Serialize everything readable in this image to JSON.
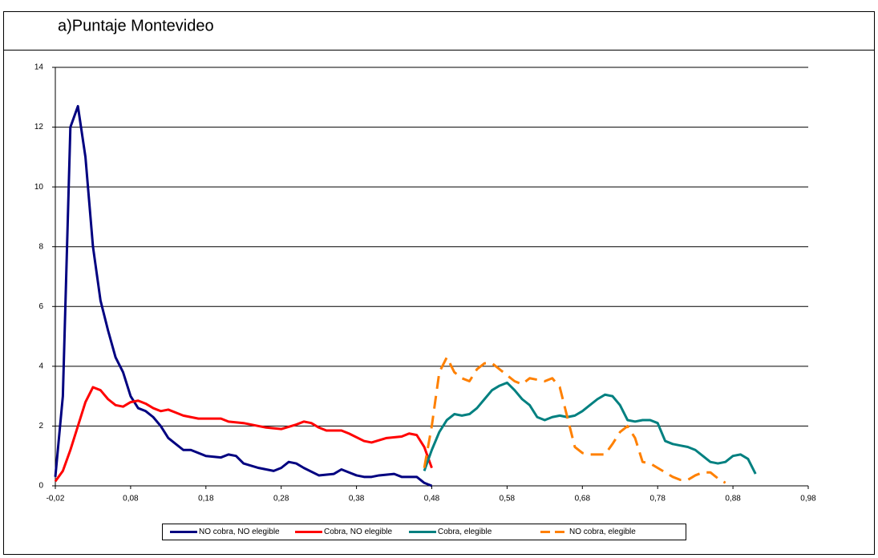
{
  "chart_data": {
    "type": "line",
    "title": "a)Puntaje Montevideo",
    "xlim": [
      -0.02,
      0.98
    ],
    "xticks": [
      {
        "value": -0.02,
        "label": "-0,02"
      },
      {
        "value": 0.08,
        "label": "0,08"
      },
      {
        "value": 0.18,
        "label": "0,18"
      },
      {
        "value": 0.28,
        "label": "0,28"
      },
      {
        "value": 0.38,
        "label": "0,38"
      },
      {
        "value": 0.48,
        "label": "0,48"
      },
      {
        "value": 0.58,
        "label": "0,58"
      },
      {
        "value": 0.68,
        "label": "0,68"
      },
      {
        "value": 0.78,
        "label": "0,78"
      },
      {
        "value": 0.88,
        "label": "0,88"
      },
      {
        "value": 0.98,
        "label": "0,98"
      }
    ],
    "ylim": [
      0,
      14
    ],
    "yticks": [
      0,
      2,
      4,
      6,
      8,
      10,
      12,
      14
    ],
    "grid": true,
    "legend": "bottom",
    "series": [
      {
        "name": "NO cobra, NO elegible",
        "color": "#000080",
        "dashed": false,
        "x": [
          -0.02,
          -0.01,
          0.0,
          0.01,
          0.02,
          0.03,
          0.04,
          0.05,
          0.06,
          0.07,
          0.08,
          0.09,
          0.1,
          0.11,
          0.12,
          0.13,
          0.14,
          0.15,
          0.16,
          0.18,
          0.2,
          0.21,
          0.22,
          0.23,
          0.25,
          0.27,
          0.28,
          0.29,
          0.3,
          0.31,
          0.33,
          0.35,
          0.36,
          0.37,
          0.38,
          0.39,
          0.4,
          0.41,
          0.43,
          0.44,
          0.46,
          0.47,
          0.48
        ],
        "values": [
          0.3,
          3.0,
          12.0,
          12.7,
          11.0,
          8.0,
          6.2,
          5.2,
          4.3,
          3.8,
          3.0,
          2.6,
          2.5,
          2.3,
          2.0,
          1.6,
          1.4,
          1.2,
          1.2,
          1.0,
          0.95,
          1.05,
          1.0,
          0.75,
          0.6,
          0.5,
          0.6,
          0.8,
          0.75,
          0.6,
          0.35,
          0.4,
          0.55,
          0.45,
          0.35,
          0.3,
          0.3,
          0.35,
          0.4,
          0.3,
          0.3,
          0.1,
          0.0
        ]
      },
      {
        "name": "Cobra, NO elegible",
        "color": "#ff0000",
        "dashed": false,
        "x": [
          -0.02,
          -0.01,
          0.0,
          0.01,
          0.02,
          0.03,
          0.04,
          0.05,
          0.06,
          0.07,
          0.08,
          0.09,
          0.1,
          0.11,
          0.12,
          0.13,
          0.14,
          0.15,
          0.17,
          0.19,
          0.2,
          0.21,
          0.23,
          0.25,
          0.26,
          0.28,
          0.3,
          0.31,
          0.32,
          0.33,
          0.34,
          0.36,
          0.37,
          0.39,
          0.4,
          0.42,
          0.44,
          0.45,
          0.46,
          0.47,
          0.48
        ],
        "values": [
          0.15,
          0.5,
          1.2,
          2.0,
          2.8,
          3.3,
          3.2,
          2.9,
          2.7,
          2.65,
          2.8,
          2.85,
          2.75,
          2.6,
          2.5,
          2.55,
          2.45,
          2.35,
          2.25,
          2.25,
          2.25,
          2.15,
          2.1,
          2.0,
          1.95,
          1.9,
          2.05,
          2.15,
          2.1,
          1.95,
          1.85,
          1.85,
          1.75,
          1.5,
          1.45,
          1.6,
          1.65,
          1.75,
          1.7,
          1.3,
          0.6
        ]
      },
      {
        "name": "Cobra, elegible",
        "color": "#008080",
        "dashed": false,
        "x": [
          0.47,
          0.48,
          0.49,
          0.5,
          0.51,
          0.52,
          0.53,
          0.54,
          0.55,
          0.56,
          0.57,
          0.58,
          0.59,
          0.6,
          0.61,
          0.62,
          0.63,
          0.64,
          0.65,
          0.66,
          0.67,
          0.68,
          0.69,
          0.7,
          0.71,
          0.72,
          0.73,
          0.74,
          0.75,
          0.76,
          0.77,
          0.78,
          0.79,
          0.8,
          0.81,
          0.82,
          0.83,
          0.84,
          0.85,
          0.86,
          0.87,
          0.88,
          0.89,
          0.9,
          0.91
        ],
        "values": [
          0.5,
          1.2,
          1.8,
          2.2,
          2.4,
          2.35,
          2.4,
          2.6,
          2.9,
          3.2,
          3.35,
          3.45,
          3.2,
          2.9,
          2.7,
          2.3,
          2.2,
          2.3,
          2.35,
          2.3,
          2.35,
          2.5,
          2.7,
          2.9,
          3.05,
          3.0,
          2.7,
          2.2,
          2.15,
          2.2,
          2.2,
          2.1,
          1.5,
          1.4,
          1.35,
          1.3,
          1.2,
          1.0,
          0.8,
          0.75,
          0.8,
          1.0,
          1.05,
          0.9,
          0.4
        ]
      },
      {
        "name": "NO cobra, elegible",
        "color": "#ff8000",
        "dashed": true,
        "x": [
          0.47,
          0.48,
          0.49,
          0.5,
          0.51,
          0.52,
          0.53,
          0.54,
          0.55,
          0.56,
          0.57,
          0.58,
          0.59,
          0.6,
          0.61,
          0.62,
          0.63,
          0.64,
          0.65,
          0.66,
          0.67,
          0.68,
          0.69,
          0.7,
          0.71,
          0.72,
          0.73,
          0.74,
          0.75,
          0.76,
          0.77,
          0.78,
          0.79,
          0.8,
          0.81,
          0.82,
          0.83,
          0.84,
          0.85,
          0.86,
          0.87
        ],
        "values": [
          0.6,
          2.0,
          3.8,
          4.3,
          3.8,
          3.6,
          3.5,
          3.9,
          4.1,
          4.1,
          3.9,
          3.7,
          3.5,
          3.4,
          3.6,
          3.55,
          3.5,
          3.6,
          3.3,
          2.3,
          1.3,
          1.1,
          1.05,
          1.05,
          1.05,
          1.4,
          1.8,
          2.0,
          1.6,
          0.8,
          0.75,
          0.6,
          0.45,
          0.3,
          0.2,
          0.2,
          0.35,
          0.45,
          0.45,
          0.25,
          0.1
        ]
      }
    ]
  }
}
